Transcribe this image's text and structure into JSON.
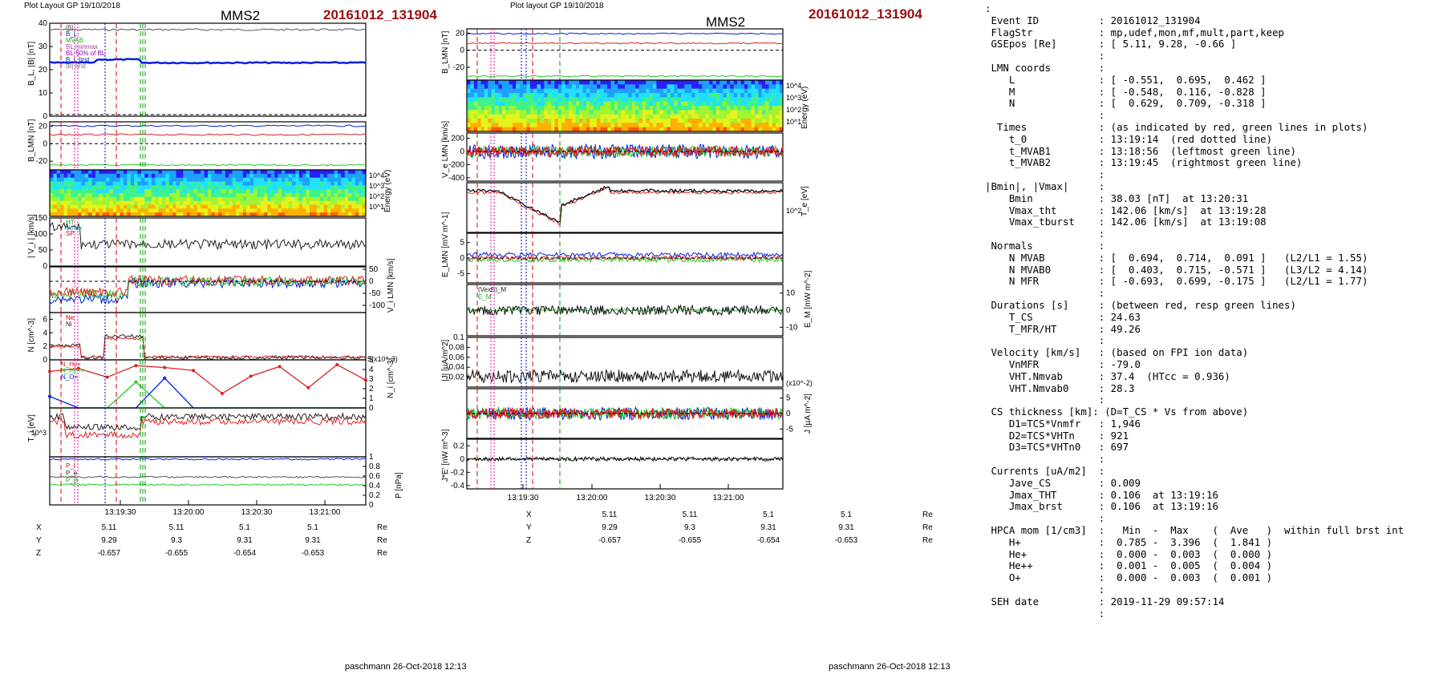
{
  "left_panel": {
    "header": "Plot Layout GP 19/10/2018",
    "spacecraft": "MMS2",
    "event": "20161012_131904",
    "footer": "paschmann 26-Oct-2018 12:13",
    "time_ticks": [
      "13:19:30",
      "13:20:00",
      "13:20:30",
      "13:21:00"
    ],
    "ylabels": [
      "B_L, |B| [nT]",
      "B_LMN [nT]",
      "Energy (eV)",
      "| V_i | [km/s]",
      "V_i LMN [km/s]",
      "N [cm^-3]",
      "N_i [cm^-3]",
      "T_i [eV]",
      "P [nPa]"
    ],
    "legend_b": [
      "|B|",
      "B_L",
      "MVAB",
      "BL,minmax",
      "BL-50% of BL",
      "B_L brst",
      "|B| brst"
    ],
    "legend_vi": [
      "HT",
      "Vmax",
      "SP"
    ],
    "legend_n": [
      "Ne",
      "Ni"
    ],
    "legend_ni": [
      "N_He+",
      "N_He++",
      "N_O+"
    ],
    "legend_p": [
      "P_i",
      "P_e",
      "P_B"
    ],
    "scale_ni": "5(x10^-3)",
    "coords": {
      "labels": [
        "X",
        "Y",
        "Z"
      ],
      "unit": "Re",
      "rows": [
        [
          "5.11",
          "5.11",
          "5.1",
          "5.1"
        ],
        [
          "9.29",
          "9.3",
          "9.31",
          "9.31"
        ],
        [
          "-0.657",
          "-0.655",
          "-0.654",
          "-0.653"
        ]
      ]
    }
  },
  "middle_panel": {
    "header": "Plot layout GP 19/10/2018",
    "spacecraft": "MMS2",
    "event": "20161012_131904",
    "footer": "paschmann 26-Oct-2018 12:13",
    "time_ticks": [
      "13:19:30",
      "13:20:00",
      "13:20:30",
      "13:21:00"
    ],
    "ylabels": [
      "B_LMN [nT]",
      "Energy (eV)",
      "V_e LMN [km/s]",
      "T_e [eV]",
      "E_LMN [mV m^-1]",
      "E_M [mW m^-2]",
      "|J| [µA/m^2]",
      "J [µA m^-2]",
      "J*E' [nW m^-3]"
    ],
    "legend_e": [
      "(VexB)_M",
      "E_M"
    ],
    "scale_j": "(x10^-2)",
    "coords": {
      "labels": [
        "X",
        "Y",
        "Z"
      ],
      "unit": "Re",
      "rows": [
        [
          "5.11",
          "5.11",
          "5.1",
          "5.1"
        ],
        [
          "9.29",
          "9.3",
          "9.31",
          "9.31"
        ],
        [
          "-0.657",
          "-0.655",
          "-0.654",
          "-0.653"
        ]
      ]
    }
  },
  "info_lines": [
    ":",
    " Event ID          : 20161012_131904",
    " FlagStr           : mp,udef,mon,mf,mult,part,keep",
    " GSEpos [Re]       : [ 5.11, 9.28, -0.66 ]",
    "                   :",
    " LMN coords        :",
    "    L              : [ -0.551,  0.695,  0.462 ]",
    "    M              : [ -0.548,  0.116, -0.828 ]",
    "    N              : [  0.629,  0.709, -0.318 ]",
    "                   :",
    "  Times            : (as indicated by red, green lines in plots)",
    "    t_0            : 13:19:14  (red dotted line)",
    "    t_MVAB1        : 13:18:56  (leftmost green line)",
    "    t_MVAB2        : 13:19:45  (rightmost green line)",
    "                   :",
    "|Bmin|, |Vmax|     :",
    "    Bmin           : 38.03 [nT]  at 13:20:31",
    "    Vmax_tht       : 142.06 [km/s]  at 13:19:28",
    "    Vmax_tburst    : 142.06 [km/s]  at 13:19:08",
    "                   :",
    " Normals           :",
    "    N MVAB         : [  0.694,  0.714,  0.091 ]   (L2/L1 = 1.55)",
    "    N MVAB0        : [  0.403,  0.715, -0.571 ]   (L3/L2 = 4.14)",
    "    N MFR          : [ -0.693,  0.699, -0.175 ]   (L2/L1 = 1.77)",
    "                   :",
    " Durations [s]     : (between red, resp green lines)",
    "    T_CS           : 24.63",
    "    T_MFR/HT       : 49.26",
    "                   :",
    " Velocity [km/s]   : (based on FPI ion data)",
    "    VnMFR          : -79.0",
    "    VHT.Nmvab      : 37.4  (HTcc = 0.936)",
    "    VHT.Nmvab0     : 28.3",
    "                   :",
    " CS thickness [km]: (D=T_CS * Vs from above)",
    "    D1=TCS*Vnmfr   : 1,946",
    "    D2=TCS*VHTn    : 921",
    "    D3=TCS*VHTn0   : 697",
    "                   :",
    " Currents [uA/m2]  :",
    "    Jave_CS        : 0.009",
    "    Jmax_THT       : 0.106  at 13:19:16",
    "    Jmax_brst      : 0.106  at 13:19:16",
    "                   :",
    " HPCA mom [1/cm3]  :   Min  -  Max    (  Ave   )  within full brst int",
    "    H+             :  0.785 -  3.396  (  1.841 )",
    "    He+            :  0.000 -  0.003  (  0.000 )",
    "    He++           :  0.001 -  0.005  (  0.004 )",
    "    O+             :  0.000 -  0.003  (  0.001 )",
    "                   :",
    " SEH date          : 2019-11-29 09:57:14",
    "                   :"
  ],
  "chart_data": [
    {
      "type": "line",
      "panel": "B_L |B|",
      "ylim": [
        0,
        40
      ],
      "yticks": [
        0,
        10,
        20,
        30,
        40
      ],
      "series": [
        {
          "name": "|B|",
          "level": 38,
          "color": "#555555"
        },
        {
          "name": "B_L",
          "level": 23,
          "color": "#0022dd"
        }
      ]
    },
    {
      "type": "line",
      "panel": "B_LMN",
      "ylim": [
        -30,
        25
      ],
      "yticks": [
        -20,
        0,
        20
      ],
      "series": [
        {
          "name": "B_L",
          "level": 22,
          "color": "#0022dd"
        },
        {
          "name": "B_M",
          "level": -23,
          "color": "#22cc22"
        },
        {
          "name": "B_N",
          "level": 10,
          "color": "#dd2222"
        }
      ]
    },
    {
      "type": "heatmap",
      "panel": "ion energy spectrogram",
      "yticks": [
        "10^1",
        "10^2",
        "10^3",
        "10^4"
      ]
    },
    {
      "type": "line",
      "panel": "|V_i|",
      "ylim": [
        0,
        150
      ],
      "yticks": [
        0,
        50,
        100,
        150
      ]
    },
    {
      "type": "line",
      "panel": "V_i LMN",
      "ylim": [
        -130,
        60
      ],
      "yticks": [
        -100,
        -50,
        0,
        50
      ]
    },
    {
      "type": "line",
      "panel": "N",
      "ylim": [
        0,
        7
      ],
      "yticks": [
        0,
        2,
        4,
        6
      ]
    },
    {
      "type": "line",
      "panel": "N_i",
      "ylim": [
        0,
        5
      ],
      "yticks": [
        0,
        1,
        2,
        3,
        4,
        5
      ],
      "series": [
        {
          "name": "N_He+",
          "values": [
            3.8,
            4.1,
            3.2,
            4.4,
            4.2,
            3.9,
            1.5,
            3.3,
            4.3,
            2.1,
            4.5,
            2.9
          ],
          "color": "#dd2222"
        },
        {
          "name": "N_He++",
          "values": [
            0,
            0,
            0,
            2.7,
            0,
            0,
            0,
            0,
            0,
            0,
            0,
            0
          ],
          "color": "#22cc22"
        },
        {
          "name": "N_O+",
          "values": [
            1.2,
            0,
            0,
            0,
            3.1,
            0,
            0,
            0,
            0,
            0,
            0,
            0
          ],
          "color": "#0022dd"
        }
      ]
    },
    {
      "type": "line",
      "panel": "T_i",
      "yticks": [
        "10^3"
      ]
    },
    {
      "type": "line",
      "panel": "P",
      "ylim": [
        0,
        1
      ],
      "yticks": [
        0.0,
        0.2,
        0.4,
        0.6,
        0.8,
        1.0
      ],
      "series": [
        {
          "name": "P_i",
          "level": 0.58,
          "color": "#555555"
        },
        {
          "name": "P_e",
          "level": 0.95,
          "color": "#0022dd"
        },
        {
          "name": "P_B",
          "level": 0.42,
          "color": "#22cc22"
        }
      ]
    },
    {
      "type": "line",
      "panel": "mid B_LMN",
      "ylim": [
        -35,
        25
      ],
      "yticks": [
        -20,
        0,
        20
      ]
    },
    {
      "type": "heatmap",
      "panel": "electron energy spectrogram",
      "yticks": [
        "10^1",
        "10^2",
        "10^3",
        "10^4"
      ]
    },
    {
      "type": "line",
      "panel": "V_e LMN",
      "ylim": [
        -450,
        280
      ],
      "yticks": [
        -400,
        -200,
        0,
        200
      ]
    },
    {
      "type": "line",
      "panel": "T_e",
      "yticks": [
        "10^2"
      ]
    },
    {
      "type": "line",
      "panel": "E_LMN",
      "ylim": [
        -8,
        8
      ],
      "yticks": [
        -5,
        0,
        5
      ]
    },
    {
      "type": "line",
      "panel": "E_M",
      "ylim": [
        -15,
        15
      ],
      "yticks": [
        -10,
        0,
        10
      ]
    },
    {
      "type": "line",
      "panel": "|J|",
      "ylim": [
        0,
        0.1
      ],
      "yticks": [
        0.02,
        0.04,
        0.06,
        0.08,
        0.1
      ]
    },
    {
      "type": "line",
      "panel": "J",
      "ylim": [
        -8,
        8
      ],
      "yticks": [
        -5,
        0,
        5
      ]
    },
    {
      "type": "line",
      "panel": "J*E'",
      "ylim": [
        -0.45,
        0.3
      ],
      "yticks": [
        -0.4,
        -0.2,
        0.0,
        0.2
      ]
    }
  ]
}
